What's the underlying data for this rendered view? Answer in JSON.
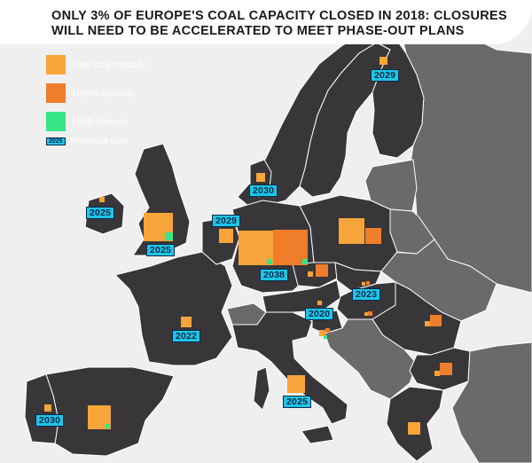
{
  "title": {
    "line1": "ONLY 3% OF EUROPE'S COAL CAPACITY CLOSED IN 2018: CLOSURES",
    "line2": "WILL NEED TO BE ACCELERATED TO MEET PHASE-OUT PLANS"
  },
  "legend": {
    "hard_coal": "Hard coal capacity",
    "lignite": "Lignite capacity",
    "closures": "2018 closures",
    "phaseout_tag": "2025",
    "phaseout": "Phaseout date"
  },
  "colors": {
    "hard_coal": "#f7a53a",
    "lignite": "#ef7d2a",
    "closures": "#36e685",
    "phaseout_tag": "#1ec5e6",
    "sea": "#efefef",
    "land_highlight": "#383638",
    "land_other": "#6b6a6b",
    "border": "#ffffff"
  },
  "phaseout_labels": {
    "finland": "2029",
    "denmark": "2030",
    "ireland": "2025",
    "uk": "2025",
    "netherlands": "2029",
    "germany": "2038",
    "slovakia": "2023",
    "austria": "2020",
    "france": "2022",
    "italy": "2025",
    "portugal": "2030"
  }
}
